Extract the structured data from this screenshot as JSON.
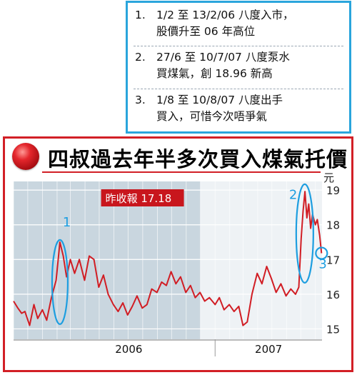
{
  "notes": [
    {
      "num": "1.",
      "line1": "1/2 至 13/2/06 八度入市，",
      "line2": "股價升至 06 年高位"
    },
    {
      "num": "2.",
      "line1": "27/6 至 10/7/07 八度泵水",
      "line2": "買煤氣，創 18.96 新高"
    },
    {
      "num": "3.",
      "line1": "1/8 至 10/8/07 八度出手",
      "line2": "買入，可惜今次唔爭氣"
    }
  ],
  "chart_data": {
    "type": "line",
    "title": "四叔過去年半多次買入煤氣托價",
    "ylabel": "元",
    "ylim": [
      14.7,
      19.25
    ],
    "yticks": [
      15,
      16,
      17,
      18,
      19
    ],
    "xrange": [
      "2005-11",
      "2007-08-15"
    ],
    "xticks": [
      "2006",
      "2007"
    ],
    "shaded_period": [
      "2005-11",
      "2006-12"
    ],
    "callout": {
      "label": "昨收報",
      "value": "17.18"
    },
    "markers": [
      {
        "label": "1",
        "from": "2006-02-01",
        "to": "2006-02-13"
      },
      {
        "label": "2",
        "from": "2007-06-27",
        "to": "2007-07-10"
      },
      {
        "label": "3",
        "from": "2007-08-01",
        "to": "2007-08-10"
      }
    ],
    "colors": {
      "line": "#d11d24",
      "shade": "#c9d6df",
      "marker": "#1d9ee0",
      "callout_bg": "#c8161d"
    },
    "series": [
      {
        "values": [
          [
            "2005-11-01",
            15.8
          ],
          [
            "2005-11-10",
            15.6
          ],
          [
            "2005-11-18",
            15.45
          ],
          [
            "2005-11-25",
            15.5
          ],
          [
            "2005-12-05",
            15.1
          ],
          [
            "2005-12-14",
            15.7
          ],
          [
            "2005-12-22",
            15.3
          ],
          [
            "2006-01-01",
            15.55
          ],
          [
            "2006-01-10",
            15.25
          ],
          [
            "2006-01-20",
            15.9
          ],
          [
            "2006-01-30",
            16.4
          ],
          [
            "2006-02-07",
            17.5
          ],
          [
            "2006-02-14",
            17.1
          ],
          [
            "2006-02-21",
            16.5
          ],
          [
            "2006-03-01",
            17.0
          ],
          [
            "2006-03-10",
            16.6
          ],
          [
            "2006-03-20",
            17.0
          ],
          [
            "2006-03-31",
            16.4
          ],
          [
            "2006-04-10",
            17.1
          ],
          [
            "2006-04-20",
            17.0
          ],
          [
            "2006-04-30",
            16.2
          ],
          [
            "2006-05-10",
            16.55
          ],
          [
            "2006-05-20",
            16.0
          ],
          [
            "2006-05-31",
            15.7
          ],
          [
            "2006-06-10",
            15.5
          ],
          [
            "2006-06-20",
            15.75
          ],
          [
            "2006-06-30",
            15.4
          ],
          [
            "2006-07-10",
            15.65
          ],
          [
            "2006-07-20",
            15.95
          ],
          [
            "2006-07-31",
            15.6
          ],
          [
            "2006-08-10",
            15.7
          ],
          [
            "2006-08-20",
            16.15
          ],
          [
            "2006-08-31",
            16.05
          ],
          [
            "2006-09-10",
            16.35
          ],
          [
            "2006-09-20",
            16.25
          ],
          [
            "2006-09-30",
            16.65
          ],
          [
            "2006-10-10",
            16.3
          ],
          [
            "2006-10-20",
            16.5
          ],
          [
            "2006-10-31",
            16.05
          ],
          [
            "2006-11-10",
            16.25
          ],
          [
            "2006-11-20",
            15.9
          ],
          [
            "2006-11-30",
            16.05
          ],
          [
            "2006-12-10",
            15.8
          ],
          [
            "2006-12-20",
            15.9
          ],
          [
            "2007-01-01",
            15.7
          ],
          [
            "2007-01-10",
            15.9
          ],
          [
            "2007-01-20",
            15.55
          ],
          [
            "2007-01-31",
            15.7
          ],
          [
            "2007-02-10",
            15.5
          ],
          [
            "2007-02-20",
            15.65
          ],
          [
            "2007-03-01",
            15.1
          ],
          [
            "2007-03-10",
            15.2
          ],
          [
            "2007-03-20",
            16.0
          ],
          [
            "2007-03-31",
            16.6
          ],
          [
            "2007-04-10",
            16.3
          ],
          [
            "2007-04-20",
            16.8
          ],
          [
            "2007-04-30",
            16.45
          ],
          [
            "2007-05-10",
            16.05
          ],
          [
            "2007-05-20",
            16.3
          ],
          [
            "2007-05-31",
            15.95
          ],
          [
            "2007-06-10",
            16.15
          ],
          [
            "2007-06-20",
            16.0
          ],
          [
            "2007-06-27",
            16.2
          ],
          [
            "2007-07-02",
            17.6
          ],
          [
            "2007-07-06",
            18.4
          ],
          [
            "2007-07-10",
            18.96
          ],
          [
            "2007-07-14",
            18.2
          ],
          [
            "2007-07-18",
            18.6
          ],
          [
            "2007-07-22",
            17.9
          ],
          [
            "2007-07-26",
            18.3
          ],
          [
            "2007-08-01",
            18.0
          ],
          [
            "2007-08-05",
            18.15
          ],
          [
            "2007-08-10",
            17.7
          ],
          [
            "2007-08-14",
            17.18
          ]
        ]
      }
    ]
  }
}
